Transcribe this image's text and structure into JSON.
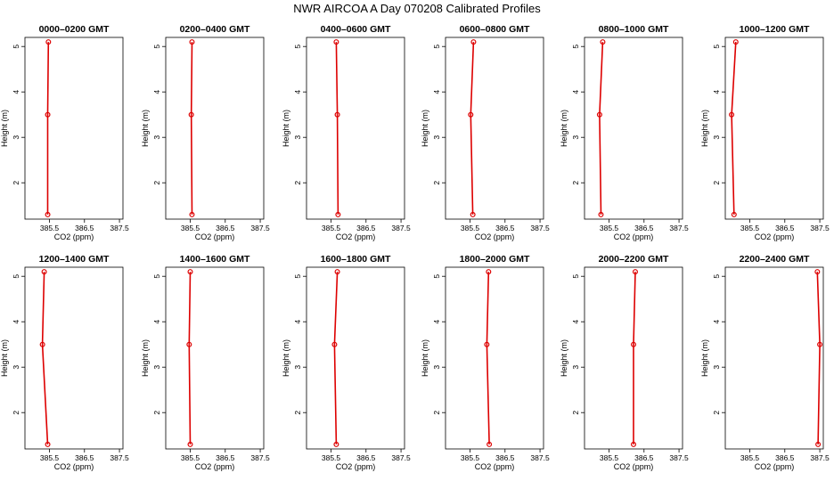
{
  "chart_data": {
    "title": "NWR AIRCOA A  Day 070208  Calibrated Profiles",
    "type": "line",
    "xlabel": "CO2 (ppm)",
    "ylabel": "Height (m)",
    "xlim": [
      384.8,
      387.6
    ],
    "ylim": [
      1.2,
      5.2
    ],
    "xticks": [
      385.5,
      386.5,
      387.5
    ],
    "yticks": [
      2,
      3,
      4,
      5
    ],
    "series_color": "#dd0000",
    "panels": [
      {
        "title": "0000–0200 GMT",
        "points": [
          {
            "x": 385.45,
            "y": 1.3
          },
          {
            "x": 385.45,
            "y": 3.5
          },
          {
            "x": 385.47,
            "y": 5.1
          }
        ]
      },
      {
        "title": "0200–0400 GMT",
        "points": [
          {
            "x": 385.55,
            "y": 1.3
          },
          {
            "x": 385.53,
            "y": 3.5
          },
          {
            "x": 385.55,
            "y": 5.1
          }
        ]
      },
      {
        "title": "0400–0600 GMT",
        "points": [
          {
            "x": 385.7,
            "y": 1.3
          },
          {
            "x": 385.68,
            "y": 3.5
          },
          {
            "x": 385.65,
            "y": 5.1
          }
        ]
      },
      {
        "title": "0600–0800 GMT",
        "points": [
          {
            "x": 385.58,
            "y": 1.3
          },
          {
            "x": 385.52,
            "y": 3.5
          },
          {
            "x": 385.6,
            "y": 5.1
          }
        ]
      },
      {
        "title": "0800–1000 GMT",
        "points": [
          {
            "x": 385.27,
            "y": 1.3
          },
          {
            "x": 385.23,
            "y": 3.5
          },
          {
            "x": 385.32,
            "y": 5.1
          }
        ]
      },
      {
        "title": "1000–1200 GMT",
        "points": [
          {
            "x": 385.05,
            "y": 1.3
          },
          {
            "x": 384.98,
            "y": 3.5
          },
          {
            "x": 385.1,
            "y": 5.1
          }
        ]
      },
      {
        "title": "1200–1400 GMT",
        "points": [
          {
            "x": 385.45,
            "y": 1.3
          },
          {
            "x": 385.3,
            "y": 3.5
          },
          {
            "x": 385.35,
            "y": 5.1
          }
        ]
      },
      {
        "title": "1400–1600 GMT",
        "points": [
          {
            "x": 385.5,
            "y": 1.3
          },
          {
            "x": 385.47,
            "y": 3.5
          },
          {
            "x": 385.5,
            "y": 5.1
          }
        ]
      },
      {
        "title": "1600–1800 GMT",
        "points": [
          {
            "x": 385.65,
            "y": 1.3
          },
          {
            "x": 385.6,
            "y": 3.5
          },
          {
            "x": 385.68,
            "y": 5.1
          }
        ]
      },
      {
        "title": "1800–2000 GMT",
        "points": [
          {
            "x": 386.05,
            "y": 1.3
          },
          {
            "x": 385.98,
            "y": 3.5
          },
          {
            "x": 386.03,
            "y": 5.1
          }
        ]
      },
      {
        "title": "2000–2200 GMT",
        "points": [
          {
            "x": 386.2,
            "y": 1.3
          },
          {
            "x": 386.2,
            "y": 3.5
          },
          {
            "x": 386.25,
            "y": 5.1
          }
        ]
      },
      {
        "title": "2200–2400 GMT",
        "points": [
          {
            "x": 387.45,
            "y": 1.3
          },
          {
            "x": 387.5,
            "y": 3.5
          },
          {
            "x": 387.43,
            "y": 5.1
          }
        ]
      }
    ]
  }
}
